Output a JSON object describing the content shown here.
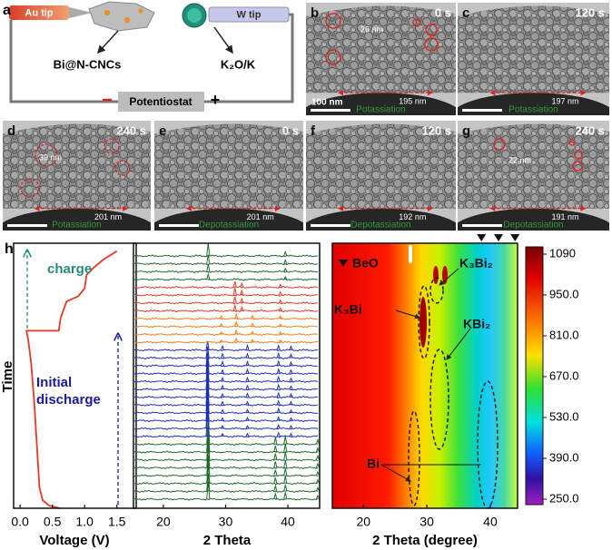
{
  "panel_a": {
    "label": "a",
    "au_tip": "Au tip",
    "w_tip": "W tip",
    "sample": "Bi@N-CNCs",
    "counter": "K₂O/K",
    "device": "Potentiostat",
    "minus": "−",
    "plus": "+"
  },
  "tem_panels": [
    {
      "label": "b",
      "time": "0 s",
      "size": "26 nm",
      "width": "195 nm",
      "scale": "100 nm",
      "process": "Potassiation"
    },
    {
      "label": "c",
      "time": "120 s",
      "width": "197 nm",
      "process": "Potassiation"
    },
    {
      "label": "d",
      "time": "240 s",
      "size": "39 nm",
      "width": "201 nm",
      "process": "Potassiation"
    },
    {
      "label": "e",
      "time": "0 s",
      "width": "201 nm",
      "process": "Depotassiation"
    },
    {
      "label": "f",
      "time": "120 s",
      "width": "192 nm",
      "process": "Depotassiation"
    },
    {
      "label": "g",
      "time": "240 s",
      "size": "22 nm",
      "width": "191 nm",
      "process": "Depotassiation"
    }
  ],
  "panel_h_label": "h",
  "chart_data": [
    {
      "type": "line",
      "ylabel": "Time",
      "xlabel": "Voltage (V)",
      "color": "#e53925",
      "x": [
        0.62,
        0.45,
        0.35,
        0.3,
        0.27,
        0.22,
        0.17,
        0.13,
        0.1,
        0.6,
        0.63,
        0.72,
        0.9,
        1.0,
        1.03,
        1.15,
        1.3,
        1.5
      ],
      "values": [
        0,
        1,
        3,
        8,
        20,
        40,
        55,
        63,
        67,
        67,
        72,
        78,
        80,
        83,
        88,
        91,
        94,
        97
      ],
      "xlim": [
        -0.1,
        1.8
      ],
      "ylim": [
        0,
        100
      ],
      "xticks": [
        {
          "value": 0,
          "label": "0.0"
        },
        {
          "value": 0.5,
          "label": "0.5"
        },
        {
          "value": 1,
          "label": "1.0"
        },
        {
          "value": 1.5,
          "label": "1.5"
        }
      ],
      "annotations": [
        "charge",
        "Initial discharge"
      ]
    },
    {
      "type": "xrd",
      "xlabel": "2 Theta",
      "xlim": [
        15.2,
        45.1
      ],
      "xticks": [
        20,
        30,
        40
      ],
      "series": [
        {
          "color": "#1e6b2a",
          "peaks": [
            [
              27.2,
              4
            ],
            [
              38,
              1.2
            ],
            [
              39.6,
              1.5
            ],
            [
              44.8,
              0.8
            ]
          ]
        },
        {
          "color": "#1e6b2a",
          "peaks": [
            [
              27.2,
              4
            ],
            [
              38,
              1.2
            ],
            [
              39.6,
              1.5
            ],
            [
              44.8,
              0.8
            ]
          ]
        },
        {
          "color": "#1e6b2a",
          "peaks": [
            [
              27.2,
              4.5
            ],
            [
              38,
              1.3
            ],
            [
              39.6,
              1.6
            ],
            [
              44.8,
              0.8
            ]
          ]
        },
        {
          "color": "#1e6b2a",
          "peaks": [
            [
              27.2,
              4.5
            ],
            [
              38,
              1.3
            ],
            [
              39.6,
              1.6
            ],
            [
              44.8,
              0.8
            ]
          ]
        },
        {
          "color": "#1e6b2a",
          "peaks": [
            [
              27.2,
              5
            ],
            [
              38,
              1.4
            ],
            [
              39.6,
              1.6
            ],
            [
              44.8,
              0.9
            ]
          ]
        },
        {
          "color": "#1e6b2a",
          "peaks": [
            [
              27.2,
              5
            ],
            [
              38,
              1.4
            ],
            [
              39.6,
              1.7
            ],
            [
              44.8,
              0.9
            ]
          ]
        },
        {
          "color": "#1e6b2a",
          "peaks": [
            [
              27.2,
              5.5
            ],
            [
              38,
              1.4
            ],
            [
              39.6,
              1.7
            ],
            [
              44.8,
              0.9
            ]
          ]
        },
        {
          "color": "#1e6b2a",
          "peaks": [
            [
              27.2,
              6
            ],
            [
              38,
              1.5
            ],
            [
              39.6,
              1.8
            ],
            [
              44.8,
              1
            ]
          ]
        },
        {
          "color": "#1f2fb8",
          "peaks": [
            [
              27.1,
              6
            ],
            [
              29.5,
              0.6
            ],
            [
              33.5,
              0.6
            ],
            [
              38.5,
              0.8
            ],
            [
              40.5,
              0.6
            ]
          ]
        },
        {
          "color": "#1f2fb8",
          "peaks": [
            [
              27.1,
              6
            ],
            [
              29.5,
              0.6
            ],
            [
              33.5,
              0.6
            ],
            [
              38.5,
              0.8
            ],
            [
              40.5,
              0.6
            ]
          ]
        },
        {
          "color": "#1f2fb8",
          "peaks": [
            [
              27.1,
              5.5
            ],
            [
              29.5,
              0.6
            ],
            [
              33.5,
              0.7
            ],
            [
              38.5,
              0.8
            ],
            [
              40.5,
              0.6
            ]
          ]
        },
        {
          "color": "#1f2fb8",
          "peaks": [
            [
              27.1,
              5.5
            ],
            [
              29.5,
              0.7
            ],
            [
              33.5,
              0.7
            ],
            [
              38.5,
              0.9
            ],
            [
              40.5,
              0.6
            ]
          ]
        },
        {
          "color": "#1f2fb8",
          "peaks": [
            [
              27.1,
              5
            ],
            [
              29.5,
              0.7
            ],
            [
              33.5,
              0.7
            ],
            [
              38.5,
              0.9
            ],
            [
              40.5,
              0.7
            ]
          ]
        },
        {
          "color": "#1f2fb8",
          "peaks": [
            [
              27.1,
              5
            ],
            [
              29.5,
              0.7
            ],
            [
              33.5,
              0.8
            ],
            [
              38.5,
              0.9
            ],
            [
              40.5,
              0.7
            ]
          ]
        },
        {
          "color": "#1f2fb8",
          "peaks": [
            [
              27.1,
              4.5
            ],
            [
              29.5,
              0.8
            ],
            [
              33.5,
              0.8
            ],
            [
              38.5,
              1
            ],
            [
              40.5,
              0.7
            ]
          ]
        },
        {
          "color": "#1f2fb8",
          "peaks": [
            [
              27.1,
              4
            ],
            [
              29.5,
              0.8
            ],
            [
              33.5,
              0.8
            ],
            [
              38.5,
              1
            ],
            [
              40.5,
              0.7
            ]
          ]
        },
        {
          "color": "#1f2fb8",
          "peaks": [
            [
              27.1,
              3.5
            ],
            [
              29.5,
              0.8
            ],
            [
              33.5,
              0.9
            ],
            [
              38.5,
              1
            ],
            [
              40.5,
              0.8
            ]
          ]
        },
        {
          "color": "#1f2fb8",
          "peaks": [
            [
              27.1,
              3
            ],
            [
              29.5,
              0.9
            ],
            [
              33.5,
              0.9
            ],
            [
              38.5,
              1
            ],
            [
              40.5,
              0.8
            ]
          ]
        },
        {
          "color": "#1f2fb8",
          "peaks": [
            [
              27.1,
              2.5
            ],
            [
              29.5,
              0.9
            ],
            [
              33.5,
              0.9
            ],
            [
              38.5,
              1
            ],
            [
              40.5,
              0.8
            ]
          ]
        },
        {
          "color": "#1f2fb8",
          "peaks": [
            [
              27.1,
              2
            ],
            [
              29.5,
              0.9
            ],
            [
              33.5,
              1
            ],
            [
              38.5,
              1
            ],
            [
              40.5,
              0.8
            ]
          ]
        },
        {
          "color": "#f08020",
          "peaks": [
            [
              29.3,
              0.5
            ],
            [
              31.7,
              0.8
            ],
            [
              34.3,
              0.6
            ],
            [
              38.8,
              0.5
            ]
          ]
        },
        {
          "color": "#f08020",
          "peaks": [
            [
              29.3,
              0.5
            ],
            [
              31.7,
              0.9
            ],
            [
              34.3,
              0.6
            ],
            [
              38.8,
              0.5
            ]
          ]
        },
        {
          "color": "#f08020",
          "peaks": [
            [
              29.3,
              0.6
            ],
            [
              31.7,
              1
            ],
            [
              34.3,
              0.7
            ],
            [
              38.8,
              0.5
            ]
          ]
        },
        {
          "color": "#f08020",
          "peaks": [
            [
              29.3,
              0.6
            ],
            [
              31.7,
              1
            ],
            [
              34.3,
              0.7
            ],
            [
              38.8,
              0.6
            ]
          ]
        },
        {
          "color": "#e53925",
          "peaks": [
            [
              31.5,
              1.2
            ],
            [
              32.6,
              0.8
            ],
            [
              38.8,
              0.6
            ]
          ]
        },
        {
          "color": "#e53925",
          "peaks": [
            [
              31.5,
              1.4
            ],
            [
              32.6,
              0.9
            ],
            [
              38.8,
              0.6
            ]
          ]
        },
        {
          "color": "#e53925",
          "peaks": [
            [
              31.5,
              1.6
            ],
            [
              32.6,
              1
            ],
            [
              38.8,
              0.7
            ]
          ]
        },
        {
          "color": "#e53925",
          "peaks": [
            [
              31.5,
              1.3
            ],
            [
              32.6,
              0.9
            ],
            [
              38.8,
              0.6
            ]
          ]
        },
        {
          "color": "#1e6b2a",
          "peaks": [
            [
              27.2,
              1.2
            ],
            [
              39.6,
              0.6
            ]
          ]
        },
        {
          "color": "#1e6b2a",
          "peaks": [
            [
              27.2,
              1.6
            ],
            [
              39.6,
              0.7
            ]
          ]
        },
        {
          "color": "#1e6b2a",
          "peaks": [
            [
              27.2,
              2
            ],
            [
              39.6,
              0.8
            ]
          ]
        },
        {
          "color": "#1e6b2a",
          "peaks": [
            [
              27.2,
              2.8
            ],
            [
              39.6,
              0.9
            ]
          ]
        }
      ]
    },
    {
      "type": "heatmap",
      "xlabel": "2 Theta (degree)",
      "xlim": [
        15.1,
        44.3
      ],
      "xticks": [
        20,
        30,
        40
      ],
      "zlim": [
        250,
        1090
      ],
      "zticks": [
        {
          "value": 250,
          "label": "250.0"
        },
        {
          "value": 390,
          "label": "390.0"
        },
        {
          "value": 530,
          "label": "530.0"
        },
        {
          "value": 670,
          "label": "670.0"
        },
        {
          "value": 810,
          "label": "810.0"
        },
        {
          "value": 950,
          "label": "950.0"
        },
        1090
      ],
      "beo_peaks": [
        38.6,
        41.3,
        43.9
      ],
      "annotations": [
        "BeO",
        "K₃Bi₂",
        "K₃Bi",
        "KBi₂",
        "Bi"
      ]
    }
  ]
}
